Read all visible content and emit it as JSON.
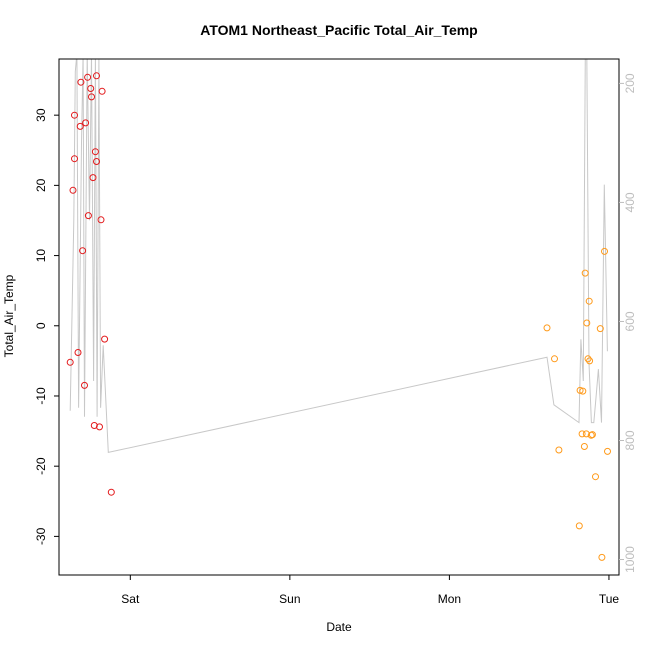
{
  "chart_data": {
    "type": "scatter",
    "title": "ATOM1 Northeast_Pacific Total_Air_Temp",
    "xlabel": "Date",
    "ylabel": "Total_Air_Temp",
    "x_ticks": [
      {
        "label": "Sat",
        "x": 1.0
      },
      {
        "label": "Sun",
        "x": 2.0
      },
      {
        "label": "Mon",
        "x": 3.0
      },
      {
        "label": "Tue",
        "x": 4.0
      }
    ],
    "xlim": [
      0.553,
      4.063
    ],
    "ylim": [
      -35.5,
      38.0
    ],
    "y_ticks": [
      -30,
      -20,
      -10,
      0,
      10,
      20,
      30
    ],
    "y2_ticks": [
      200,
      400,
      600,
      800,
      1000
    ],
    "y2_lim": [
      1026,
      159
    ],
    "grid": false,
    "colors": {
      "series_red": "#e31a1c",
      "series_orange": "#ff9a1a",
      "line": "#c8c8c8",
      "axis": "#000000",
      "axis_right": "#bdbdbd"
    },
    "series": [
      {
        "color": "#e31a1c",
        "points": [
          [
            0.623,
            -5.2
          ],
          [
            0.641,
            19.3
          ],
          [
            0.65,
            23.8
          ],
          [
            0.65,
            30.0
          ],
          [
            0.672,
            -3.8
          ],
          [
            0.686,
            28.4
          ],
          [
            0.69,
            34.7
          ],
          [
            0.701,
            10.7
          ],
          [
            0.713,
            -8.5
          ],
          [
            0.72,
            28.9
          ],
          [
            0.732,
            35.4
          ],
          [
            0.737,
            15.7
          ],
          [
            0.752,
            33.8
          ],
          [
            0.757,
            32.6
          ],
          [
            0.766,
            21.1
          ],
          [
            0.774,
            -14.2
          ],
          [
            0.781,
            24.8
          ],
          [
            0.788,
            23.4
          ],
          [
            0.788,
            35.6
          ],
          [
            0.807,
            -14.4
          ],
          [
            0.816,
            15.1
          ],
          [
            0.823,
            33.4
          ],
          [
            0.839,
            -1.9
          ],
          [
            0.881,
            -23.7
          ]
        ]
      },
      {
        "color": "#ff9a1a",
        "points": [
          [
            3.612,
            -0.3
          ],
          [
            3.659,
            -4.7
          ],
          [
            3.686,
            -17.7
          ],
          [
            3.814,
            -28.5
          ],
          [
            3.819,
            -9.2
          ],
          [
            3.832,
            -15.4
          ],
          [
            3.836,
            -9.3
          ],
          [
            3.846,
            -17.2
          ],
          [
            3.851,
            7.5
          ],
          [
            3.858,
            -15.4
          ],
          [
            3.861,
            0.4
          ],
          [
            3.869,
            -4.7
          ],
          [
            3.876,
            3.5
          ],
          [
            3.879,
            -5.0
          ],
          [
            3.889,
            -15.6
          ],
          [
            3.896,
            -15.5
          ],
          [
            3.916,
            -21.5
          ],
          [
            3.946,
            -0.4
          ],
          [
            3.956,
            -33.0
          ],
          [
            3.972,
            10.6
          ],
          [
            3.991,
            -17.9
          ]
        ]
      }
    ],
    "line_series": {
      "axis": "right",
      "color": "#c8c8c8",
      "x": [
        0.623,
        0.646,
        0.655,
        0.665,
        0.676,
        0.694,
        0.704,
        0.713,
        0.73,
        0.744,
        0.757,
        0.77,
        0.781,
        0.792,
        0.803,
        0.814,
        0.83,
        0.862,
        3.612,
        3.655,
        3.812,
        3.824,
        3.839,
        3.852,
        3.861,
        3.875,
        3.89,
        3.905,
        3.918,
        3.934,
        3.953,
        3.971,
        3.99
      ],
      "y": [
        750,
        430,
        180,
        150,
        745,
        300,
        150,
        760,
        150,
        430,
        150,
        700,
        150,
        760,
        160,
        745,
        640,
        820,
        660,
        740,
        770,
        630,
        700,
        150,
        150,
        670,
        770,
        770,
        730,
        680,
        770,
        370,
        650
      ]
    }
  }
}
